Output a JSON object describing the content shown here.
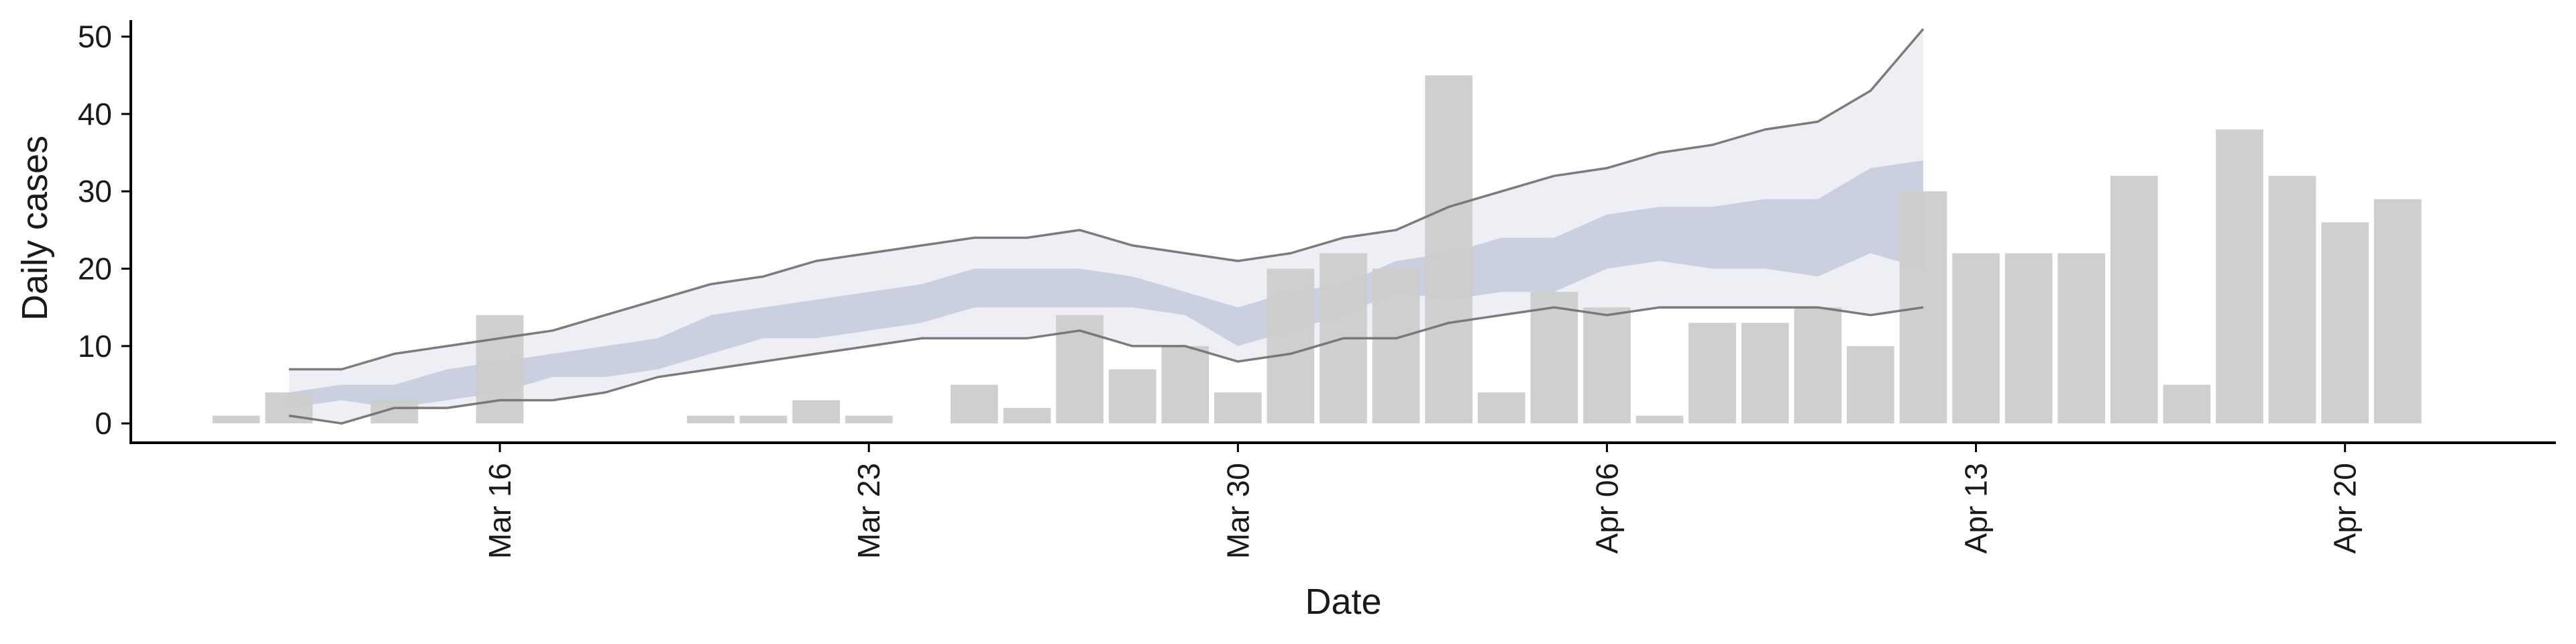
{
  "chart_data": {
    "type": "bar",
    "title": "",
    "xlabel": "Date",
    "ylabel": "Daily cases",
    "ylim": [
      -2.5,
      53
    ],
    "yticks": [
      0,
      10,
      20,
      30,
      40,
      50
    ],
    "x_dates": [
      "2020-03-11",
      "2020-03-12",
      "2020-03-13",
      "2020-03-14",
      "2020-03-15",
      "2020-03-16",
      "2020-03-17",
      "2020-03-18",
      "2020-03-19",
      "2020-03-20",
      "2020-03-21",
      "2020-03-22",
      "2020-03-23",
      "2020-03-24",
      "2020-03-25",
      "2020-03-26",
      "2020-03-27",
      "2020-03-28",
      "2020-03-29",
      "2020-03-30",
      "2020-03-31",
      "2020-04-01",
      "2020-04-02",
      "2020-04-03",
      "2020-04-04",
      "2020-04-05",
      "2020-04-06",
      "2020-04-07",
      "2020-04-08",
      "2020-04-09",
      "2020-04-10",
      "2020-04-11",
      "2020-04-12",
      "2020-04-13",
      "2020-04-14",
      "2020-04-15",
      "2020-04-16",
      "2020-04-17",
      "2020-04-18",
      "2020-04-19",
      "2020-04-20",
      "2020-04-21"
    ],
    "xlim": [
      "2020-03-09",
      "2020-04-24"
    ],
    "xticks": [
      {
        "date": "2020-03-16",
        "label": "Mar 16"
      },
      {
        "date": "2020-03-23",
        "label": "Mar 23"
      },
      {
        "date": "2020-03-30",
        "label": "Mar 30"
      },
      {
        "date": "2020-04-06",
        "label": "Apr 06"
      },
      {
        "date": "2020-04-13",
        "label": "Apr 13"
      },
      {
        "date": "2020-04-20",
        "label": "Apr 20"
      }
    ],
    "bars": [
      1,
      4,
      0,
      3,
      0,
      14,
      0,
      0,
      0,
      1,
      1,
      3,
      1,
      0,
      5,
      2,
      14,
      7,
      10,
      4,
      20,
      22,
      20,
      45,
      4,
      17,
      15,
      1,
      13,
      13,
      15,
      10,
      30,
      22,
      22,
      22,
      32,
      5,
      38,
      32,
      26,
      29
    ],
    "band_dates": [
      "2020-03-12",
      "2020-03-13",
      "2020-03-14",
      "2020-03-15",
      "2020-03-16",
      "2020-03-17",
      "2020-03-18",
      "2020-03-19",
      "2020-03-20",
      "2020-03-21",
      "2020-03-22",
      "2020-03-23",
      "2020-03-24",
      "2020-03-25",
      "2020-03-26",
      "2020-03-27",
      "2020-03-28",
      "2020-03-29",
      "2020-03-30",
      "2020-03-31",
      "2020-04-01",
      "2020-04-02",
      "2020-04-03",
      "2020-04-04",
      "2020-04-05",
      "2020-04-06",
      "2020-04-07",
      "2020-04-08",
      "2020-04-09",
      "2020-04-10",
      "2020-04-11",
      "2020-04-12"
    ],
    "outer_upper": [
      7,
      7,
      9,
      10,
      11,
      12,
      14,
      16,
      18,
      19,
      21,
      22,
      23,
      24,
      24,
      25,
      23,
      22,
      21,
      22,
      24,
      25,
      28,
      30,
      32,
      33,
      35,
      36,
      38,
      39,
      43,
      51
    ],
    "outer_lower": [
      1,
      0,
      2,
      2,
      3,
      3,
      4,
      6,
      7,
      8,
      9,
      10,
      11,
      11,
      11,
      12,
      10,
      10,
      8,
      9,
      11,
      11,
      13,
      14,
      15,
      14,
      15,
      15,
      15,
      15,
      14,
      15
    ],
    "inner_upper": [
      4,
      5,
      5,
      7,
      8,
      9,
      10,
      11,
      14,
      15,
      16,
      17,
      18,
      20,
      20,
      20,
      19,
      17,
      15,
      17,
      18,
      21,
      22,
      24,
      24,
      27,
      28,
      28,
      29,
      29,
      33,
      34
    ],
    "inner_lower": [
      2,
      3,
      2,
      3,
      4,
      6,
      6,
      7,
      9,
      11,
      11,
      12,
      13,
      15,
      15,
      15,
      15,
      14,
      10,
      12,
      14,
      17,
      16,
      17,
      17,
      20,
      21,
      20,
      20,
      19,
      22,
      20
    ],
    "colors": {
      "bar": "#cccccc",
      "outer_band": "#e6e8f0",
      "inner_band": "#c4cadc",
      "outer_line": "#6e6e6e",
      "axis": "#000000"
    }
  }
}
